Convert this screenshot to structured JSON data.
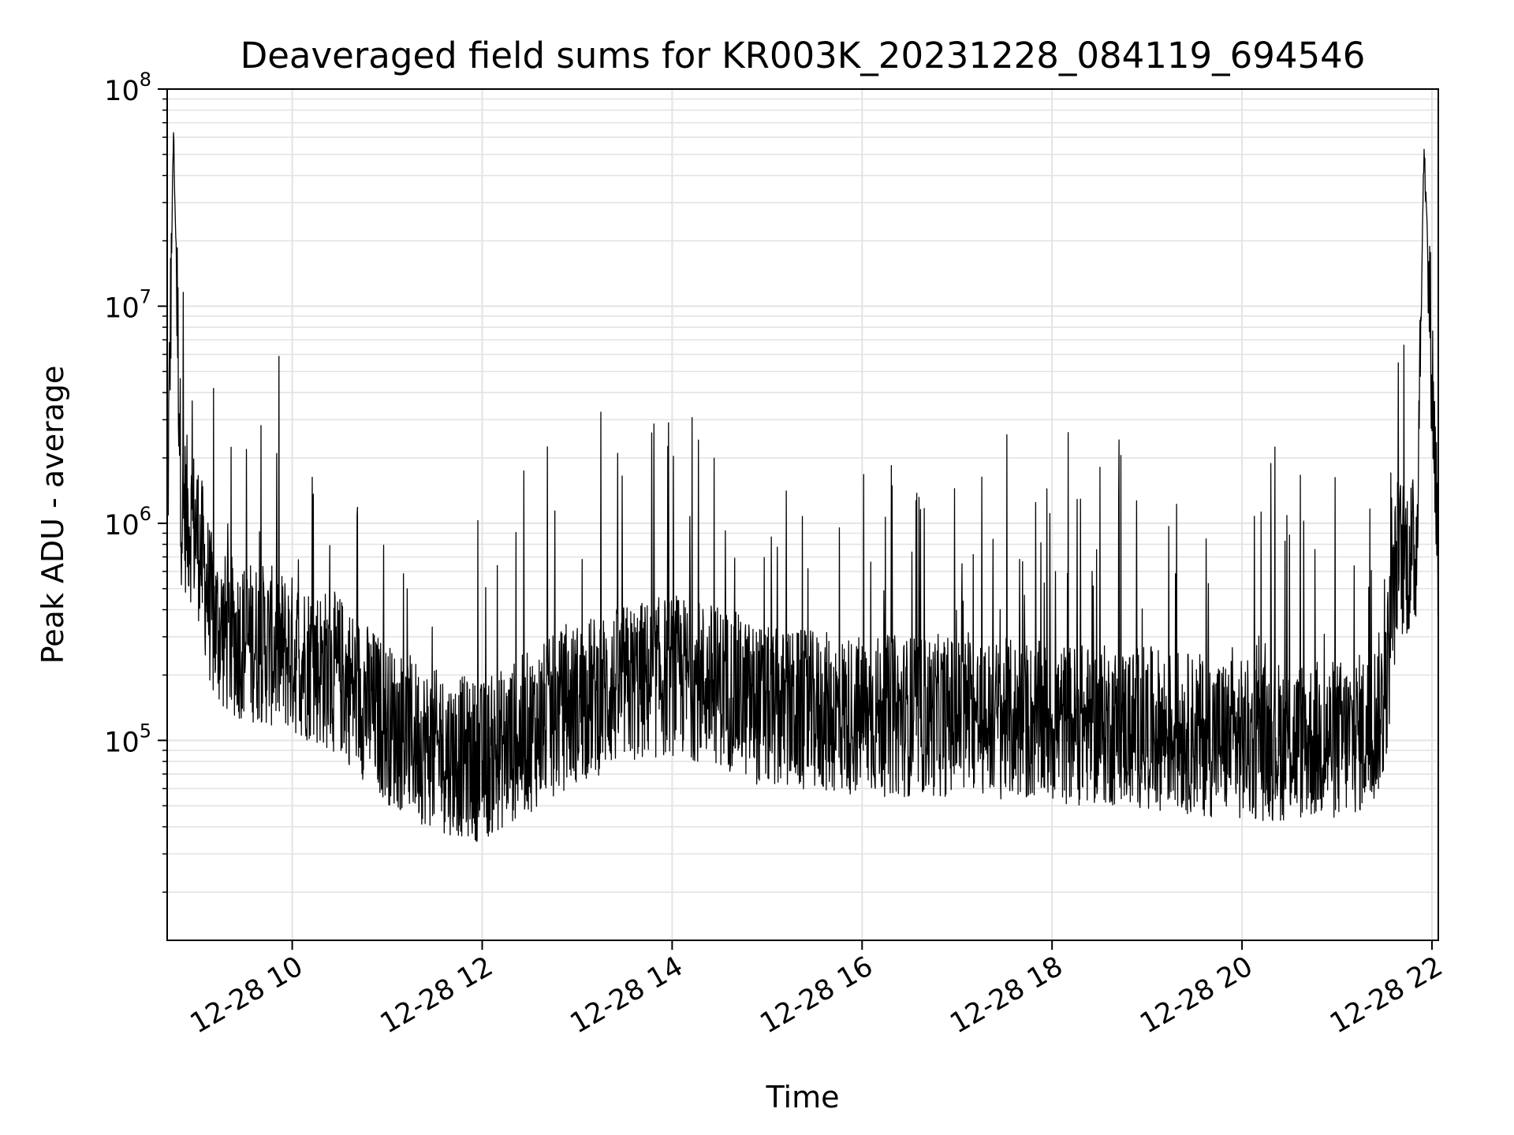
{
  "chart_data": {
    "type": "line",
    "title": "Deaveraged field sums for KR003K_20231228_084119_694546",
    "xlabel": "Time",
    "ylabel": "Peak ADU - average",
    "y_scale": "log",
    "ylim": [
      12000,
      100000000
    ],
    "xlim": [
      "2023-12-28 08:41",
      "2023-12-28 22:04"
    ],
    "x_ticks": [
      "12-28 10",
      "12-28 12",
      "12-28 14",
      "12-28 16",
      "12-28 18",
      "12-28 20",
      "12-28 22"
    ],
    "y_ticks": [
      {
        "value": 100000,
        "base": "10",
        "exp": "5"
      },
      {
        "value": 1000000,
        "base": "10",
        "exp": "6"
      },
      {
        "value": 10000000,
        "base": "10",
        "exp": "7"
      },
      {
        "value": 100000000,
        "base": "10",
        "exp": "8"
      }
    ],
    "grid": true,
    "line_color": "#000000",
    "grid_color": "#e3e3e3",
    "series": [
      {
        "x": [
          "2023-12-28 08:41",
          "2023-12-28 08:45",
          "2023-12-28 08:50",
          "2023-12-28 09:00",
          "2023-12-28 09:10",
          "2023-12-28 09:20",
          "2023-12-28 09:40",
          "2023-12-28 10:00",
          "2023-12-28 10:30",
          "2023-12-28 11:00",
          "2023-12-28 11:30",
          "2023-12-28 12:00",
          "2023-12-28 12:30",
          "2023-12-28 13:00",
          "2023-12-28 13:30",
          "2023-12-28 14:00",
          "2023-12-28 14:30",
          "2023-12-28 15:00",
          "2023-12-28 16:00",
          "2023-12-28 17:00",
          "2023-12-28 18:00",
          "2023-12-28 19:00",
          "2023-12-28 20:00",
          "2023-12-28 21:00",
          "2023-12-28 21:20",
          "2023-12-28 21:30",
          "2023-12-28 21:38",
          "2023-12-28 21:50",
          "2023-12-28 21:55",
          "2023-12-28 22:04"
        ],
        "y": [
          900000,
          65000000,
          1200000,
          900000,
          350000,
          300000,
          280000,
          250000,
          200000,
          120000,
          90000,
          80000,
          110000,
          150000,
          180000,
          200000,
          180000,
          140000,
          130000,
          130000,
          120000,
          115000,
          100000,
          100000,
          110000,
          150000,
          700000,
          700000,
          55000000,
          750000
        ]
      }
    ]
  }
}
